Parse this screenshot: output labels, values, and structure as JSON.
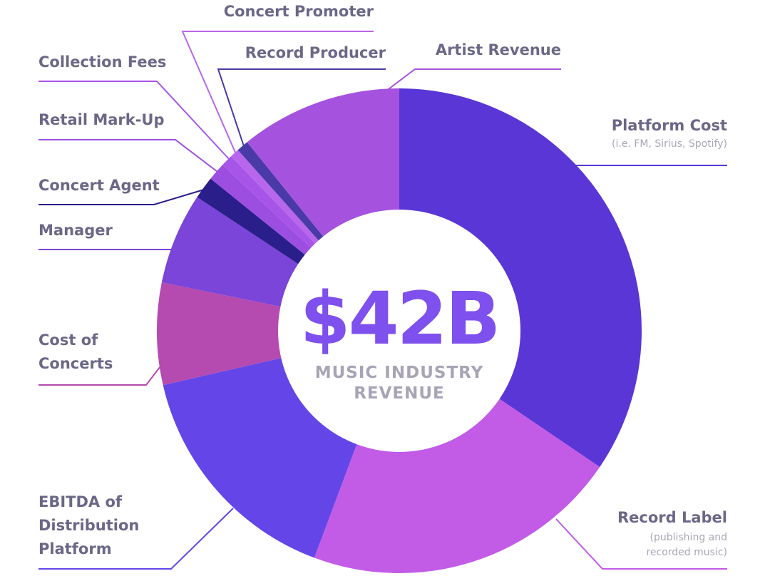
{
  "chart_data": {
    "type": "pie",
    "center": {
      "value": "$42B",
      "label_lines": [
        "MUSIC INDUSTRY",
        "REVENUE"
      ]
    },
    "slices": [
      {
        "name": "Platform Cost",
        "note": "(i.e. FM, Sirius, Spotify)",
        "value": 34.5,
        "color": "#5a36d6"
      },
      {
        "name": "Record Label",
        "note_lines": [
          "(publishing and",
          "recorded music)"
        ],
        "value": 21.2,
        "color": "#c25be6"
      },
      {
        "name": "EBITDA of Distribution Platform",
        "label_lines": [
          "EBITDA of",
          "Distribution",
          "Platform"
        ],
        "value": 15.7,
        "color": "#6446e8"
      },
      {
        "name": "Cost of Concerts",
        "label_lines": [
          "Cost of",
          "Concerts"
        ],
        "value": 6.8,
        "color": "#b54ab0"
      },
      {
        "name": "Manager",
        "value": 6.1,
        "color": "#7a45d8"
      },
      {
        "name": "Concert Agent",
        "value": 1.5,
        "color": "#2a1e8a"
      },
      {
        "name": "Retail Mark-Up",
        "value": 1.2,
        "color": "#9b4ee0"
      },
      {
        "name": "Collection Fees",
        "value": 0.8,
        "color": "#a755e8"
      },
      {
        "name": "Concert Promoter",
        "value": 0.6,
        "color": "#b866ec"
      },
      {
        "name": "Record Producer",
        "value": 0.8,
        "color": "#4a3aa8"
      },
      {
        "name": "Artist Revenue",
        "value": 10.8,
        "color": "#a553de"
      }
    ]
  },
  "colors": {
    "center_value": "#7e50ee",
    "label_text": "#6b6787",
    "note_text": "#a9a6b8"
  }
}
